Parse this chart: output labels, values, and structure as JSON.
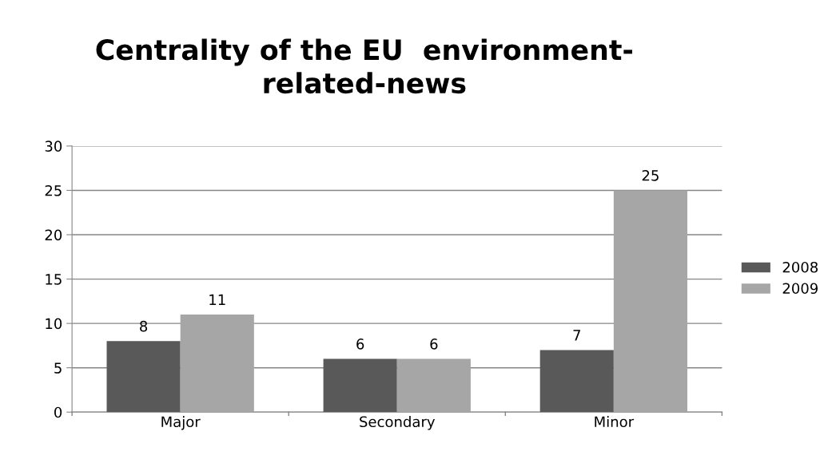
{
  "chart_data": {
    "type": "bar",
    "title": "Centrality of the EU  environment-\nrelated-news",
    "categories": [
      "Major",
      "Secondary",
      "Minor"
    ],
    "series": [
      {
        "name": "2008",
        "color": "#595959",
        "values": [
          8,
          6,
          7
        ]
      },
      {
        "name": "2009",
        "color": "#a6a6a6",
        "values": [
          11,
          6,
          25
        ]
      }
    ],
    "ylim": [
      0,
      30
    ],
    "yticks": [
      0,
      5,
      10,
      15,
      20,
      25,
      30
    ],
    "grid": "y",
    "legend": "right",
    "data_labels": true
  }
}
